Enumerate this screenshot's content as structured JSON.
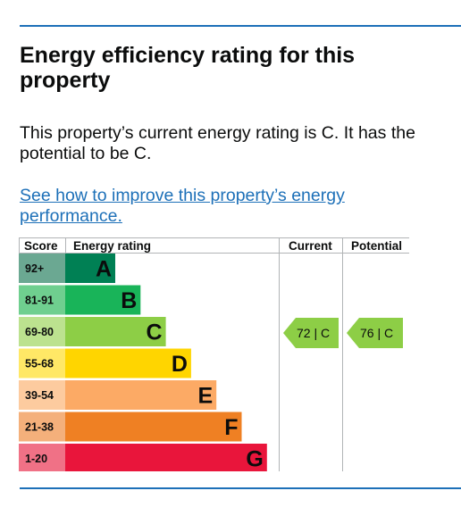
{
  "heading": "Energy efficiency rating for this property",
  "summary": "This property’s current energy rating is C. It has the potential to be C.",
  "improve_link": "See how to improve this property’s energy performance.",
  "table": {
    "headers": {
      "score": "Score",
      "rating": "Energy rating",
      "current": "Current",
      "potential": "Potential"
    },
    "bands": [
      {
        "letter": "A",
        "range": "92+",
        "color": "#008054",
        "score_bg": "#6ba892"
      },
      {
        "letter": "B",
        "range": "81-91",
        "color": "#19b459",
        "score_bg": "#6fcf8f"
      },
      {
        "letter": "C",
        "range": "69-80",
        "color": "#8dce46",
        "score_bg": "#bce28f"
      },
      {
        "letter": "D",
        "range": "55-68",
        "color": "#ffd500",
        "score_bg": "#ffe866"
      },
      {
        "letter": "E",
        "range": "39-54",
        "color": "#fcaa65",
        "score_bg": "#fdcb9f"
      },
      {
        "letter": "F",
        "range": "21-38",
        "color": "#ef8023",
        "score_bg": "#f4b07b"
      },
      {
        "letter": "G",
        "range": "1-20",
        "color": "#e9153b",
        "score_bg": "#f07186"
      }
    ],
    "current": {
      "score": 72,
      "band": "C",
      "label": "72 |  C",
      "color": "#8dce46"
    },
    "potential": {
      "score": 76,
      "band": "C",
      "label": "76 |  C",
      "color": "#8dce46"
    }
  }
}
